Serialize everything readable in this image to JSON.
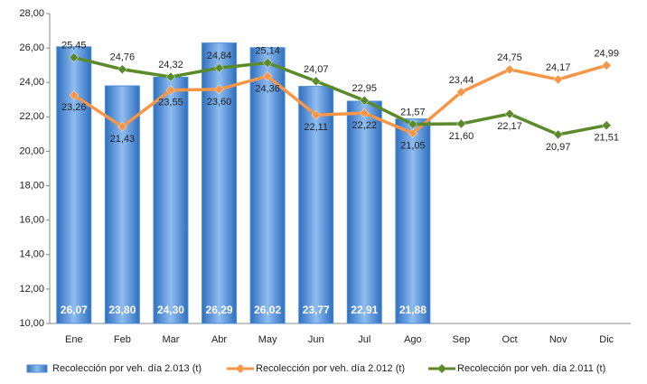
{
  "chart_data": {
    "type": "bar_line",
    "categories": [
      "Ene",
      "Feb",
      "Mar",
      "Abr",
      "May",
      "Jun",
      "Jul",
      "Ago",
      "Sep",
      "Oct",
      "Nov",
      "Dic"
    ],
    "ylim": [
      10,
      28
    ],
    "yticks": [
      {
        "value": 10,
        "label": "10,00"
      },
      {
        "value": 12,
        "label": "12,00"
      },
      {
        "value": 14,
        "label": "14,00"
      },
      {
        "value": 16,
        "label": "16,00"
      },
      {
        "value": 18,
        "label": "18,00"
      },
      {
        "value": 20,
        "label": "20,00"
      },
      {
        "value": 22,
        "label": "22,00"
      },
      {
        "value": 24,
        "label": "24,00"
      },
      {
        "value": 26,
        "label": "26,00"
      },
      {
        "value": 28,
        "label": "28,00"
      }
    ],
    "series": [
      {
        "name": "Recolección por veh. día 2.013 (t)",
        "kind": "bar",
        "color": "#4f8fd6",
        "values": [
          26.07,
          23.8,
          24.3,
          26.29,
          26.02,
          23.77,
          22.91,
          21.88,
          null,
          null,
          null,
          null
        ],
        "value_labels": [
          "26,07",
          "23,80",
          "24,30",
          "26,29",
          "26,02",
          "23,77",
          "22,91",
          "21,88",
          null,
          null,
          null,
          null
        ]
      },
      {
        "name": "Recolección por veh. día 2.012 (t)",
        "kind": "line",
        "color": "#f79646",
        "values": [
          23.26,
          21.43,
          23.55,
          23.6,
          24.36,
          22.11,
          22.22,
          21.05,
          23.44,
          24.75,
          24.17,
          24.99
        ],
        "value_labels": [
          "23,26",
          "21,43",
          "23,55",
          "23,60",
          "24,36",
          "22,11",
          "22,22",
          "21,05",
          "23,44",
          "24,75",
          "24,17",
          "24,99"
        ]
      },
      {
        "name": "Recolección por veh. día 2.011 (t)",
        "kind": "line",
        "color": "#5b8a2a",
        "values": [
          25.45,
          24.76,
          24.32,
          24.84,
          25.14,
          24.07,
          22.95,
          21.57,
          21.6,
          22.17,
          20.97,
          21.51
        ],
        "value_labels": [
          "25,45",
          "24,76",
          "24,32",
          "24,84",
          "25,14",
          "24,07",
          "22,95",
          "21,57",
          "21,60",
          "22,17",
          "20,97",
          "21,51"
        ]
      }
    ]
  }
}
